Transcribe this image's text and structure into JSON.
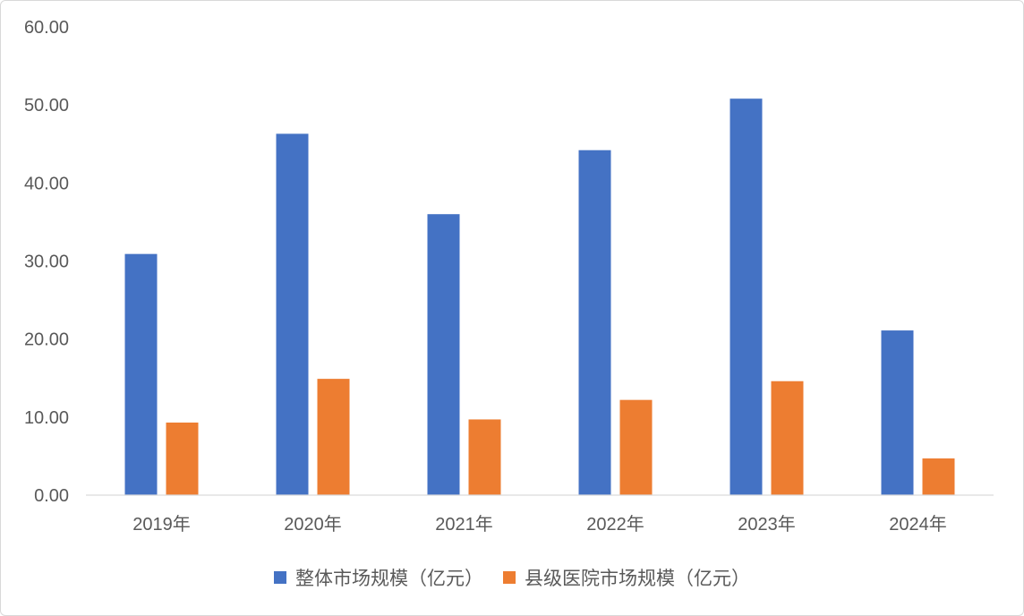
{
  "chart_data": {
    "type": "bar",
    "categories": [
      "2019年",
      "2020年",
      "2021年",
      "2022年",
      "2023年",
      "2024年"
    ],
    "series": [
      {
        "name": "整体市场规模（亿元）",
        "values": [
          30.9,
          46.3,
          36.0,
          44.2,
          50.8,
          21.1
        ],
        "color": "#4472C4"
      },
      {
        "name": "县级医院市场规模（亿元）",
        "values": [
          9.3,
          14.9,
          9.7,
          12.2,
          14.6,
          4.7
        ],
        "color": "#ED7D31"
      }
    ],
    "ylim": [
      0,
      60
    ],
    "yticks": [
      0,
      10,
      20,
      30,
      40,
      50,
      60
    ],
    "y_tick_labels": [
      "0.00",
      "10.00",
      "20.00",
      "30.00",
      "40.00",
      "50.00",
      "60.00"
    ],
    "grid": false,
    "legend_position": "bottom"
  }
}
